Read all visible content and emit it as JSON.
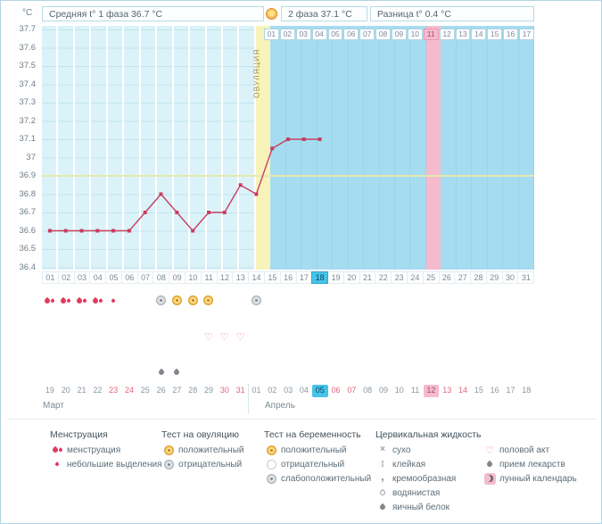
{
  "header": {
    "unit": "°C",
    "avg_phase1": "Средняя t° 1 фаза 36.7 °C",
    "phase2_avg": "2 фаза 37.1 °C",
    "difference": "Разница t° 0.4 °C"
  },
  "chart_data": {
    "type": "line",
    "ylabel": "°C",
    "ylim": [
      36.4,
      37.7
    ],
    "ytick_step": 0.1,
    "yticks": [
      "37.7",
      "37.6",
      "37.5",
      "37.4",
      "37.3",
      "37.2",
      "37.1",
      "37",
      "36.9",
      "36.8",
      "36.7",
      "36.6",
      "36.5",
      "36.4"
    ],
    "days": [
      "01",
      "02",
      "03",
      "04",
      "05",
      "06",
      "07",
      "08",
      "09",
      "10",
      "11",
      "12",
      "13",
      "14",
      "15",
      "16",
      "17",
      "18",
      "19",
      "20",
      "21",
      "22",
      "23",
      "24",
      "25",
      "26",
      "27",
      "28",
      "29",
      "30",
      "31"
    ],
    "current_day": 18,
    "ovulation_day": 14,
    "ovulation_label": "ОВУЛЯЦИЯ",
    "pink_day": 25,
    "coverline_t": 36.9,
    "dpo_labels": [
      "01",
      "02",
      "03",
      "04",
      "05",
      "06",
      "07",
      "08",
      "09",
      "10",
      "11",
      "12",
      "13",
      "14",
      "15",
      "16",
      "17"
    ],
    "dpo_pink_label": "11",
    "series": [
      {
        "points": [
          {
            "day": 1,
            "t": 36.6
          },
          {
            "day": 2,
            "t": 36.6
          },
          {
            "day": 3,
            "t": 36.6
          },
          {
            "day": 4,
            "t": 36.6
          },
          {
            "day": 5,
            "t": 36.6
          },
          {
            "day": 6,
            "t": 36.6
          },
          {
            "day": 7,
            "t": 36.7
          },
          {
            "day": 8,
            "t": 36.8
          },
          {
            "day": 9,
            "t": 36.7
          },
          {
            "day": 10,
            "t": 36.6
          },
          {
            "day": 11,
            "t": 36.7
          },
          {
            "day": 12,
            "t": 36.7
          },
          {
            "day": 13,
            "t": 36.85
          },
          {
            "day": 14,
            "t": 36.8
          },
          {
            "day": 15,
            "t": 37.05
          },
          {
            "day": 16,
            "t": 37.1
          },
          {
            "day": 17,
            "t": 37.1
          },
          {
            "day": 18,
            "t": 37.1
          }
        ]
      }
    ]
  },
  "symbols": {
    "menstruation": [
      {
        "day": 1,
        "type": "menstruation"
      },
      {
        "day": 2,
        "type": "menstruation"
      },
      {
        "day": 3,
        "type": "menstruation"
      },
      {
        "day": 4,
        "type": "menstruation"
      },
      {
        "day": 5,
        "type": "spotting"
      }
    ],
    "ovulation_tests": [
      {
        "day": 8,
        "result": "negative"
      },
      {
        "day": 9,
        "result": "positive"
      },
      {
        "day": 10,
        "result": "positive"
      },
      {
        "day": 11,
        "result": "positive"
      },
      {
        "day": 14,
        "result": "negative"
      }
    ],
    "intercourse_days": [
      11,
      12,
      13
    ],
    "medication_days": [
      8,
      9
    ]
  },
  "date_axis": {
    "months": [
      {
        "label": "Март"
      },
      {
        "label": "Апрель"
      }
    ],
    "dates": [
      {
        "label": "19"
      },
      {
        "label": "20"
      },
      {
        "label": "21"
      },
      {
        "label": "22"
      },
      {
        "label": "23",
        "weekend": true
      },
      {
        "label": "24",
        "weekend": true
      },
      {
        "label": "25"
      },
      {
        "label": "26"
      },
      {
        "label": "27"
      },
      {
        "label": "28"
      },
      {
        "label": "29"
      },
      {
        "label": "30",
        "weekend": true
      },
      {
        "label": "31",
        "weekend": true
      },
      {
        "label": "01"
      },
      {
        "label": "02"
      },
      {
        "label": "03"
      },
      {
        "label": "04"
      },
      {
        "label": "05",
        "today": true
      },
      {
        "label": "06",
        "weekend": true
      },
      {
        "label": "07",
        "weekend": true
      },
      {
        "label": "08"
      },
      {
        "label": "09"
      },
      {
        "label": "10"
      },
      {
        "label": "11"
      },
      {
        "label": "12",
        "pink": true
      },
      {
        "label": "13",
        "weekend": true
      },
      {
        "label": "14",
        "weekend": true
      },
      {
        "label": "15"
      },
      {
        "label": "16"
      },
      {
        "label": "17"
      },
      {
        "label": "18"
      }
    ]
  },
  "legend": {
    "groups": [
      {
        "title": "Менструация",
        "items": [
          {
            "icon": "drops-red",
            "label": "менструация"
          },
          {
            "icon": "drop-small-red",
            "label": "небольшие выделения"
          }
        ]
      },
      {
        "title": "Тест на овуляцию",
        "items": [
          {
            "icon": "circle-yellow",
            "label": "положительный"
          },
          {
            "icon": "circle-gray",
            "label": "отрицательный"
          }
        ]
      },
      {
        "title": "Тест на беременность",
        "items": [
          {
            "icon": "circle-yellow",
            "label": "положительный"
          },
          {
            "icon": "circle-white",
            "label": "отрицательный"
          },
          {
            "icon": "circle-halfgray",
            "label": "слабоположительный"
          }
        ]
      },
      {
        "title": "Цервикальная жидкость",
        "items": [
          {
            "icon": "x-mark",
            "label": "сухо"
          },
          {
            "icon": "sticky",
            "label": "клейкая"
          },
          {
            "icon": "creamy",
            "label": "кремообразная"
          },
          {
            "icon": "drop-outline",
            "label": "водянистая"
          },
          {
            "icon": "drop-gray",
            "label": "яичный белок"
          }
        ]
      },
      {
        "title": "",
        "items": [
          {
            "icon": "heart",
            "label": "половой акт"
          },
          {
            "icon": "drop-dark",
            "label": "прием лекарств"
          },
          {
            "icon": "moon",
            "label": "лунный календарь"
          }
        ]
      }
    ]
  },
  "colors": {
    "line": "#c73e63",
    "coverline": "#e6e8b0",
    "phase1": "#dbf2f9",
    "phase2": "#a6dcf0",
    "ovulation": "#f8f3bb",
    "pink": "#f6bacd",
    "today": "#47c3ea",
    "weekend": "#e26580",
    "menstruation": "#e23b5f",
    "positive": "#f5b540",
    "negative": "#c9cfd3",
    "heart": "#f27ea9"
  }
}
